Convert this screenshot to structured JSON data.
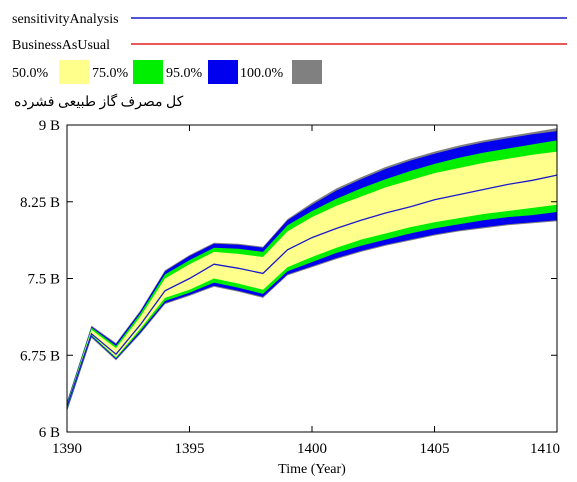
{
  "legend": {
    "series": [
      {
        "name": "sensitivityAnalysis",
        "color": "#1a1acc"
      },
      {
        "name": "BusinessAsUsual",
        "color": "#e02020"
      }
    ],
    "bands": [
      {
        "label": "50.0%",
        "color": "#ffff8c"
      },
      {
        "label": "75.0%",
        "color": "#00ee00"
      },
      {
        "label": "95.0%",
        "color": "#0000ee"
      },
      {
        "label": "100.0%",
        "color": "#808080"
      }
    ]
  },
  "chart_data": {
    "type": "area",
    "title": "کل مصرف گاز طبیعی فشرده",
    "xlabel": "Time (Year)",
    "ylabel": "",
    "xlim": [
      1390,
      1410
    ],
    "ylim": [
      6000000000,
      9000000000
    ],
    "x_ticks": [
      1390,
      1395,
      1400,
      1405,
      1410
    ],
    "x_tick_labels": [
      "1390",
      "1395",
      "1400",
      "1405",
      "1410"
    ],
    "y_ticks": [
      6000000000,
      6750000000,
      7500000000,
      8250000000,
      9000000000
    ],
    "y_tick_labels": [
      "6 B",
      "6.75 B",
      "7.5 B",
      "8.25 B",
      "9 B"
    ],
    "grid": false,
    "legend_position": "top",
    "x": [
      1390,
      1391,
      1392,
      1393,
      1394,
      1395,
      1396,
      1397,
      1398,
      1399,
      1400,
      1401,
      1402,
      1403,
      1404,
      1405,
      1406,
      1407,
      1408,
      1409,
      1410
    ],
    "series": [
      {
        "name": "sensitivityAnalysis",
        "values": [
          6250000000.0,
          6960000000.0,
          6760000000.0,
          7050000000.0,
          7380000000.0,
          7500000000.0,
          7640000000.0,
          7600000000.0,
          7550000000.0,
          7780000000.0,
          7900000000.0,
          7990000000.0,
          8070000000.0,
          8140000000.0,
          8200000000.0,
          8270000000.0,
          8320000000.0,
          8370000000.0,
          8420000000.0,
          8460000000.0,
          8510000000.0
        ]
      }
    ],
    "bands": [
      {
        "name": "100.0%",
        "lower": [
          6200000000.0,
          6920000000.0,
          6700000000.0,
          6960000000.0,
          7250000000.0,
          7330000000.0,
          7420000000.0,
          7370000000.0,
          7310000000.0,
          7530000000.0,
          7610000000.0,
          7690000000.0,
          7760000000.0,
          7820000000.0,
          7870000000.0,
          7920000000.0,
          7960000000.0,
          7990000000.0,
          8020000000.0,
          8040000000.0,
          8060000000.0
        ],
        "upper": [
          6300000000.0,
          7040000000.0,
          6870000000.0,
          7190000000.0,
          7580000000.0,
          7730000000.0,
          7850000000.0,
          7840000000.0,
          7810000000.0,
          8080000000.0,
          8240000000.0,
          8380000000.0,
          8490000000.0,
          8590000000.0,
          8670000000.0,
          8740000000.0,
          8800000000.0,
          8850000000.0,
          8890000000.0,
          8930000000.0,
          8970000000.0
        ]
      },
      {
        "name": "95.0%",
        "lower": [
          6210000000.0,
          6930000000.0,
          6710000000.0,
          6970000000.0,
          7260000000.0,
          7340000000.0,
          7430000000.0,
          7380000000.0,
          7320000000.0,
          7540000000.0,
          7620000000.0,
          7700000000.0,
          7770000000.0,
          7830000000.0,
          7880000000.0,
          7930000000.0,
          7970000000.0,
          8000000000.0,
          8030000000.0,
          8050000000.0,
          8070000000.0
        ],
        "upper": [
          6290000000.0,
          7030000000.0,
          6860000000.0,
          7180000000.0,
          7570000000.0,
          7720000000.0,
          7840000000.0,
          7830000000.0,
          7800000000.0,
          8070000000.0,
          8220000000.0,
          8360000000.0,
          8470000000.0,
          8570000000.0,
          8650000000.0,
          8720000000.0,
          8780000000.0,
          8830000000.0,
          8870000000.0,
          8910000000.0,
          8940000000.0
        ]
      },
      {
        "name": "75.0%",
        "lower": [
          6220000000.0,
          6940000000.0,
          6720000000.0,
          6990000000.0,
          7280000000.0,
          7360000000.0,
          7460000000.0,
          7410000000.0,
          7350000000.0,
          7570000000.0,
          7660000000.0,
          7750000000.0,
          7820000000.0,
          7880000000.0,
          7940000000.0,
          7990000000.0,
          8030000000.0,
          8070000000.0,
          8100000000.0,
          8120000000.0,
          8150000000.0
        ],
        "upper": [
          6280000000.0,
          7020000000.0,
          6840000000.0,
          7160000000.0,
          7540000000.0,
          7680000000.0,
          7800000000.0,
          7790000000.0,
          7760000000.0,
          8020000000.0,
          8160000000.0,
          8280000000.0,
          8380000000.0,
          8470000000.0,
          8550000000.0,
          8620000000.0,
          8680000000.0,
          8730000000.0,
          8770000000.0,
          8810000000.0,
          8850000000.0
        ]
      },
      {
        "name": "50.0%",
        "lower": [
          6230000000.0,
          6950000000.0,
          6730000000.0,
          7010000000.0,
          7310000000.0,
          7390000000.0,
          7500000000.0,
          7450000000.0,
          7390000000.0,
          7610000000.0,
          7710000000.0,
          7800000000.0,
          7880000000.0,
          7940000000.0,
          8000000000.0,
          8050000000.0,
          8090000000.0,
          8130000000.0,
          8160000000.0,
          8190000000.0,
          8220000000.0
        ],
        "upper": [
          6270000000.0,
          7000000000.0,
          6820000000.0,
          7130000000.0,
          7500000000.0,
          7640000000.0,
          7760000000.0,
          7740000000.0,
          7710000000.0,
          7960000000.0,
          8100000000.0,
          8210000000.0,
          8300000000.0,
          8390000000.0,
          8460000000.0,
          8530000000.0,
          8580000000.0,
          8630000000.0,
          8670000000.0,
          8710000000.0,
          8740000000.0
        ]
      }
    ]
  }
}
